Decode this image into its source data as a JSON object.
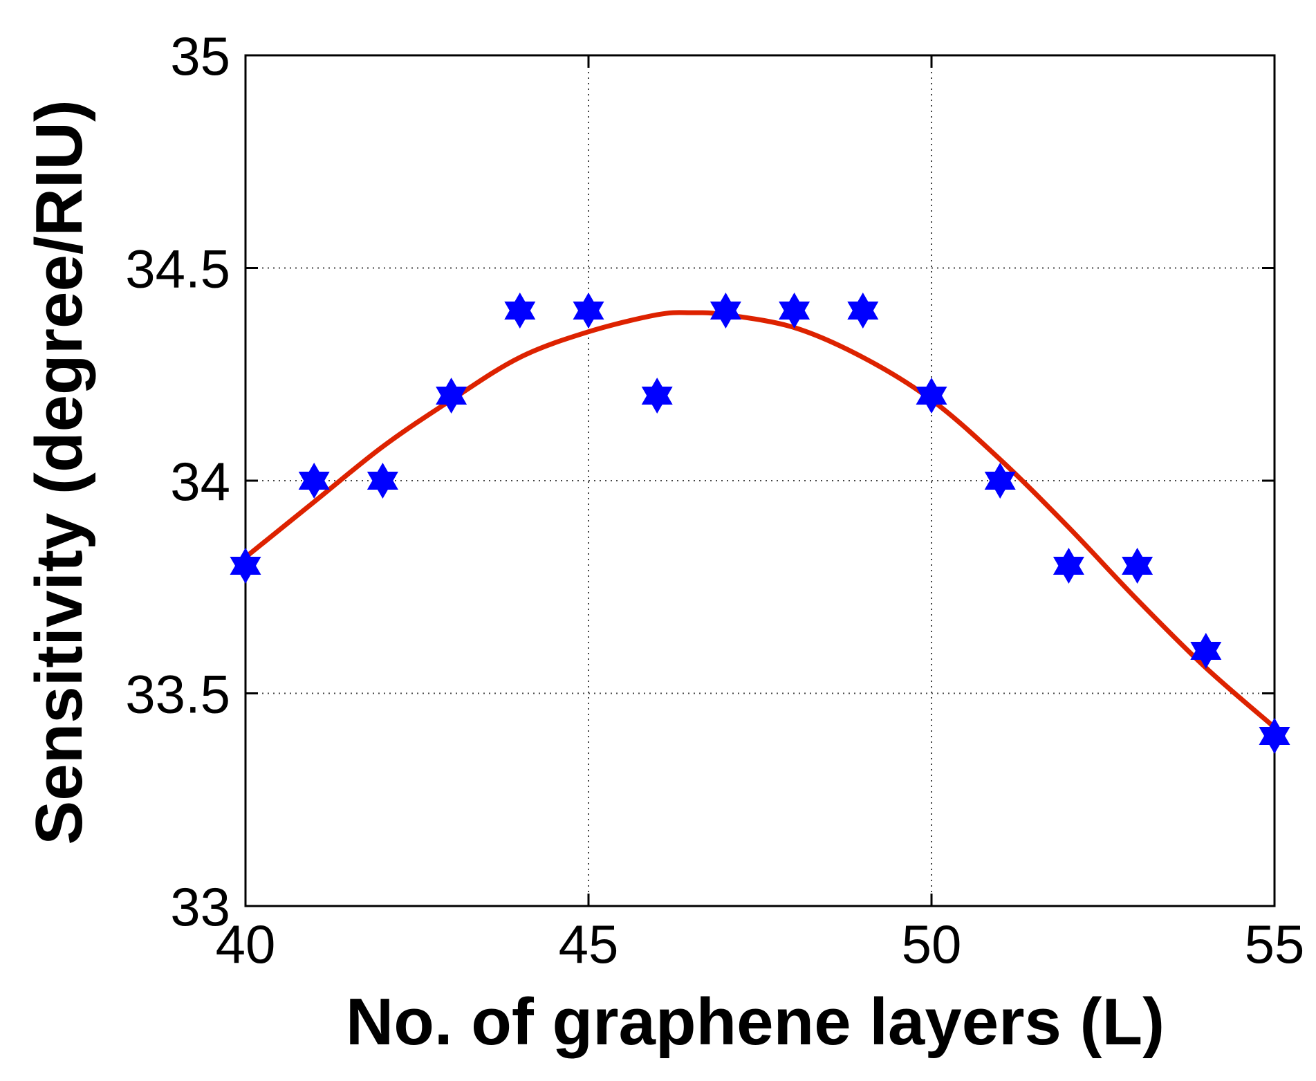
{
  "chart_data": {
    "type": "scatter",
    "xlabel": "No. of graphene layers (L)",
    "ylabel": "Sensitivity (degree/RIU)",
    "xlim": [
      40,
      55
    ],
    "ylim": [
      33,
      35
    ],
    "x_ticks": [
      40,
      45,
      50,
      55
    ],
    "y_ticks": [
      33,
      33.5,
      34,
      34.5,
      35
    ],
    "x_tick_labels": [
      "40",
      "45",
      "50",
      "55"
    ],
    "y_tick_labels": [
      "33",
      "33.5",
      "34",
      "34.5",
      "35"
    ],
    "grid": true,
    "series": [
      {
        "kind": "markers",
        "marker": "hexagram",
        "color": "#0000ff",
        "x": [
          40,
          41,
          42,
          43,
          44,
          45,
          46,
          47,
          48,
          49,
          50,
          51,
          52,
          53,
          54,
          55
        ],
        "y": [
          33.8,
          34.0,
          34.0,
          34.2,
          34.4,
          34.4,
          34.2,
          34.4,
          34.4,
          34.4,
          34.2,
          34.0,
          33.8,
          33.8,
          33.6,
          33.4
        ]
      },
      {
        "kind": "fit-line",
        "color": "#dd2200",
        "x": [
          40,
          41,
          42,
          43,
          44,
          45,
          46,
          46.5,
          47,
          48,
          49,
          50,
          51,
          52,
          53,
          54,
          55
        ],
        "y": [
          33.82,
          33.95,
          34.08,
          34.19,
          34.29,
          34.35,
          34.39,
          34.395,
          34.39,
          34.36,
          34.29,
          34.19,
          34.05,
          33.89,
          33.72,
          33.56,
          33.42
        ]
      }
    ]
  }
}
